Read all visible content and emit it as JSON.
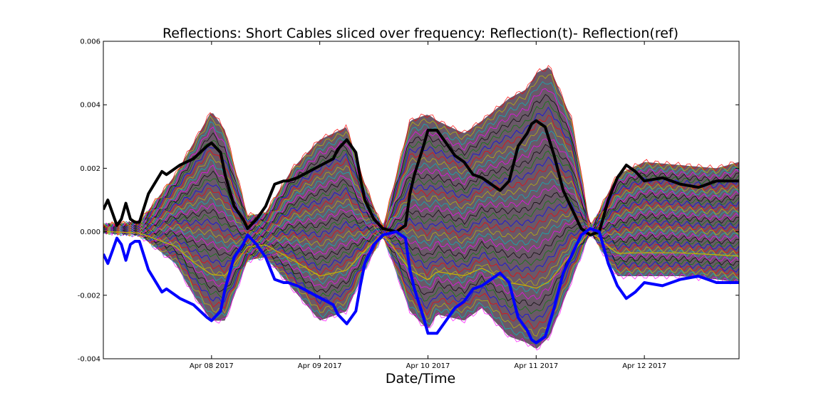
{
  "chart_data": {
    "type": "line",
    "title": "Reflections: Short Cables sliced over frequency: Reflection(t)- Reflection(ref)",
    "xlabel": "Date/Time",
    "ylabel": "",
    "x_axis": {
      "start": "2017-04-07T00:00",
      "end": "2017-04-12T21:00",
      "ticks": [
        "Apr 08 2017",
        "Apr 09 2017",
        "Apr 10 2017",
        "Apr 11 2017",
        "Apr 12 2017"
      ]
    },
    "y_axis": {
      "ylim": [
        -0.004,
        0.006
      ],
      "ticks": [
        "-0.004",
        "-0.002",
        "0.000",
        "0.002",
        "0.004",
        "0.006"
      ]
    },
    "grid": false,
    "legend": "none",
    "colors": {
      "bundle": [
        "#ff00ff",
        "#00bfbf",
        "#bfbf00",
        "#ff0000",
        "#0000ff",
        "#008000",
        "#000000"
      ],
      "black_series": "#000000",
      "blue_series": "#0000ff"
    },
    "envelope": {
      "x": [
        "2017-04-07T00:00",
        "2017-04-07T08:00",
        "2017-04-07T16:00",
        "2017-04-07T20:00",
        "2017-04-08T00:00",
        "2017-04-08T03:00",
        "2017-04-08T08:00",
        "2017-04-08T12:00",
        "2017-04-08T18:00",
        "2017-04-09T00:00",
        "2017-04-09T06:00",
        "2017-04-09T10:00",
        "2017-04-09T14:00",
        "2017-04-09T20:00",
        "2017-04-10T00:00",
        "2017-04-10T02:00",
        "2017-04-10T08:00",
        "2017-04-10T12:00",
        "2017-04-10T18:00",
        "2017-04-10T22:00",
        "2017-04-11T00:00",
        "2017-04-11T03:00",
        "2017-04-11T08:00",
        "2017-04-11T12:00",
        "2017-04-11T18:00",
        "2017-04-12T00:00",
        "2017-04-12T08:00",
        "2017-04-12T16:00",
        "2017-04-12T21:00"
      ],
      "upper": [
        0.0002,
        0.0003,
        0.0018,
        0.0028,
        0.0038,
        0.0032,
        0.0005,
        0.0006,
        0.002,
        0.0029,
        0.0033,
        0.0015,
        0.0001,
        0.0035,
        0.0037,
        0.0035,
        0.0031,
        0.0035,
        0.0042,
        0.0045,
        0.005,
        0.0052,
        0.0035,
        0.0001,
        0.0018,
        0.0022,
        0.0021,
        0.002,
        0.0022
      ],
      "lower": [
        0.0,
        -0.0001,
        -0.001,
        -0.002,
        -0.0028,
        -0.0028,
        -0.0009,
        -0.0008,
        -0.0018,
        -0.0028,
        -0.0025,
        -0.0012,
        -0.0001,
        -0.0025,
        -0.0031,
        -0.0026,
        -0.0028,
        -0.0024,
        -0.0033,
        -0.0035,
        -0.0037,
        -0.0033,
        -0.0015,
        0.0,
        -0.0014,
        -0.0014,
        -0.0014,
        -0.0015,
        -0.0016
      ]
    },
    "series": [
      {
        "color": "#000000",
        "x": [
          "2017-04-07T00:00",
          "2017-04-07T01:00",
          "2017-04-07T02:00",
          "2017-04-07T03:00",
          "2017-04-07T04:00",
          "2017-04-07T05:00",
          "2017-04-07T06:00",
          "2017-04-07T07:00",
          "2017-04-07T08:00",
          "2017-04-07T10:00",
          "2017-04-07T13:00",
          "2017-04-07T14:00",
          "2017-04-07T17:00",
          "2017-04-07T20:00",
          "2017-04-07T23:00",
          "2017-04-08T00:00",
          "2017-04-08T02:00",
          "2017-04-08T03:00",
          "2017-04-08T05:00",
          "2017-04-08T07:00",
          "2017-04-08T08:00",
          "2017-04-08T10:00",
          "2017-04-08T12:00",
          "2017-04-08T14:00",
          "2017-04-08T16:00",
          "2017-04-08T17:00",
          "2017-04-08T19:00",
          "2017-04-08T23:00",
          "2017-04-09T03:00",
          "2017-04-09T04:00",
          "2017-04-09T06:00",
          "2017-04-09T08:00",
          "2017-04-09T09:00",
          "2017-04-09T10:00",
          "2017-04-09T12:00",
          "2017-04-09T14:00",
          "2017-04-09T17:00",
          "2017-04-09T19:00",
          "2017-04-09T20:00",
          "2017-04-09T21:00",
          "2017-04-09T23:00",
          "2017-04-10T00:00",
          "2017-04-10T02:00",
          "2017-04-10T04:00",
          "2017-04-10T06:00",
          "2017-04-10T08:00",
          "2017-04-10T10:00",
          "2017-04-10T12:00",
          "2017-04-10T14:00",
          "2017-04-10T16:00",
          "2017-04-10T18:00",
          "2017-04-10T20:00",
          "2017-04-10T22:00",
          "2017-04-10T23:00",
          "2017-04-11T00:00",
          "2017-04-11T02:00",
          "2017-04-11T04:00",
          "2017-04-11T06:00",
          "2017-04-11T08:00",
          "2017-04-11T10:00",
          "2017-04-11T12:00",
          "2017-04-11T14:00",
          "2017-04-11T16:00",
          "2017-04-11T18:00",
          "2017-04-11T20:00",
          "2017-04-11T22:00",
          "2017-04-12T00:00",
          "2017-04-12T04:00",
          "2017-04-12T08:00",
          "2017-04-12T12:00",
          "2017-04-12T16:00",
          "2017-04-12T21:00"
        ],
        "y": [
          0.0007,
          0.001,
          0.0006,
          0.0002,
          0.0004,
          0.0009,
          0.0004,
          0.0003,
          0.0003,
          0.0012,
          0.0019,
          0.0018,
          0.0021,
          0.0023,
          0.0027,
          0.0028,
          0.0025,
          0.0018,
          0.0008,
          0.0004,
          0.0001,
          0.0004,
          0.0008,
          0.0015,
          0.0016,
          0.0016,
          0.0017,
          0.002,
          0.0023,
          0.0026,
          0.0029,
          0.0025,
          0.0017,
          0.001,
          0.0004,
          0.0001,
          0.0,
          0.0002,
          0.0012,
          0.0018,
          0.0027,
          0.0032,
          0.0032,
          0.0028,
          0.0024,
          0.0022,
          0.0018,
          0.0017,
          0.0015,
          0.0013,
          0.0016,
          0.0027,
          0.0031,
          0.0034,
          0.0035,
          0.0033,
          0.0024,
          0.0013,
          0.0007,
          0.0001,
          -0.0001,
          0.0,
          0.001,
          0.0017,
          0.0021,
          0.0019,
          0.0016,
          0.0017,
          0.0015,
          0.0014,
          0.0016,
          0.0016
        ]
      },
      {
        "color": "#0000ff",
        "x": [
          "2017-04-07T00:00",
          "2017-04-07T01:00",
          "2017-04-07T02:00",
          "2017-04-07T03:00",
          "2017-04-07T04:00",
          "2017-04-07T05:00",
          "2017-04-07T06:00",
          "2017-04-07T07:00",
          "2017-04-07T08:00",
          "2017-04-07T10:00",
          "2017-04-07T13:00",
          "2017-04-07T14:00",
          "2017-04-07T17:00",
          "2017-04-07T20:00",
          "2017-04-07T23:00",
          "2017-04-08T00:00",
          "2017-04-08T02:00",
          "2017-04-08T03:00",
          "2017-04-08T05:00",
          "2017-04-08T07:00",
          "2017-04-08T08:00",
          "2017-04-08T10:00",
          "2017-04-08T12:00",
          "2017-04-08T14:00",
          "2017-04-08T16:00",
          "2017-04-08T17:00",
          "2017-04-08T19:00",
          "2017-04-08T23:00",
          "2017-04-09T03:00",
          "2017-04-09T04:00",
          "2017-04-09T06:00",
          "2017-04-09T08:00",
          "2017-04-09T09:00",
          "2017-04-09T10:00",
          "2017-04-09T12:00",
          "2017-04-09T14:00",
          "2017-04-09T17:00",
          "2017-04-09T19:00",
          "2017-04-09T20:00",
          "2017-04-09T21:00",
          "2017-04-09T23:00",
          "2017-04-10T00:00",
          "2017-04-10T02:00",
          "2017-04-10T04:00",
          "2017-04-10T06:00",
          "2017-04-10T08:00",
          "2017-04-10T10:00",
          "2017-04-10T12:00",
          "2017-04-10T14:00",
          "2017-04-10T16:00",
          "2017-04-10T18:00",
          "2017-04-10T20:00",
          "2017-04-10T22:00",
          "2017-04-10T23:00",
          "2017-04-11T00:00",
          "2017-04-11T02:00",
          "2017-04-11T04:00",
          "2017-04-11T06:00",
          "2017-04-11T08:00",
          "2017-04-11T10:00",
          "2017-04-11T12:00",
          "2017-04-11T14:00",
          "2017-04-11T16:00",
          "2017-04-11T18:00",
          "2017-04-11T20:00",
          "2017-04-11T22:00",
          "2017-04-12T00:00",
          "2017-04-12T04:00",
          "2017-04-12T08:00",
          "2017-04-12T12:00",
          "2017-04-12T16:00",
          "2017-04-12T21:00"
        ],
        "y": [
          -0.0007,
          -0.001,
          -0.0006,
          -0.0002,
          -0.0004,
          -0.0009,
          -0.0004,
          -0.0003,
          -0.0003,
          -0.0012,
          -0.0019,
          -0.0018,
          -0.0021,
          -0.0023,
          -0.0027,
          -0.0028,
          -0.0025,
          -0.0018,
          -0.0008,
          -0.0004,
          -0.0001,
          -0.0004,
          -0.0008,
          -0.0015,
          -0.0016,
          -0.0016,
          -0.0017,
          -0.002,
          -0.0023,
          -0.0026,
          -0.0029,
          -0.0025,
          -0.0017,
          -0.001,
          -0.0004,
          -0.0001,
          0.0,
          -0.0002,
          -0.0012,
          -0.0018,
          -0.0027,
          -0.0032,
          -0.0032,
          -0.0028,
          -0.0024,
          -0.0022,
          -0.0018,
          -0.0017,
          -0.0015,
          -0.0013,
          -0.0016,
          -0.0027,
          -0.0031,
          -0.0034,
          -0.0035,
          -0.0033,
          -0.0024,
          -0.0013,
          -0.0007,
          -0.0001,
          0.0001,
          0.0,
          -0.001,
          -0.0017,
          -0.0021,
          -0.0019,
          -0.0016,
          -0.0017,
          -0.0015,
          -0.0014,
          -0.0016,
          -0.0016
        ]
      }
    ]
  }
}
